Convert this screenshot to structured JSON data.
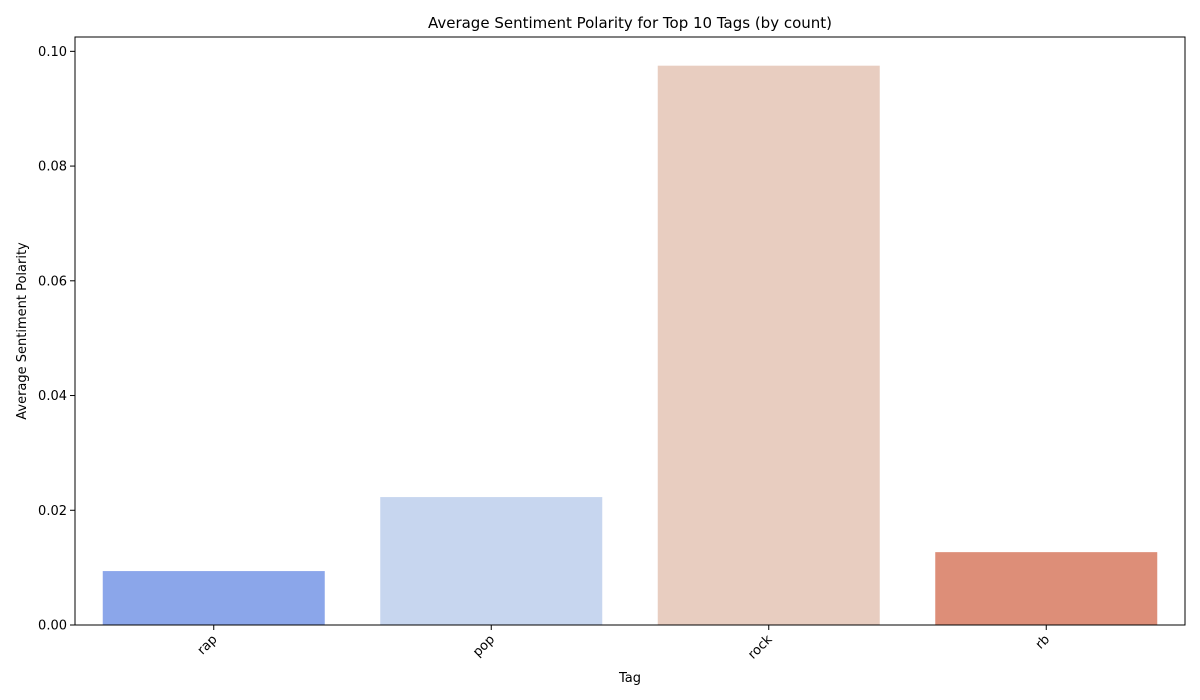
{
  "chart_data": {
    "type": "bar",
    "title": "Average Sentiment Polarity for Top 10 Tags (by count)",
    "xlabel": "Tag",
    "ylabel": "Average Sentiment Polarity",
    "categories": [
      "rap",
      "pop",
      "rock",
      "rb"
    ],
    "values": [
      0.0094,
      0.0223,
      0.0975,
      0.0127
    ],
    "colors": [
      "#8ba6ea",
      "#c7d6ef",
      "#e8cdc0",
      "#dd8e78"
    ],
    "ylim": [
      0,
      0.1025
    ],
    "yticks": [
      "0.00",
      "0.02",
      "0.04",
      "0.06",
      "0.08",
      "0.10"
    ],
    "ytick_values": [
      0,
      0.02,
      0.04,
      0.06,
      0.08,
      0.1
    ],
    "grid": false,
    "legend": "none"
  }
}
